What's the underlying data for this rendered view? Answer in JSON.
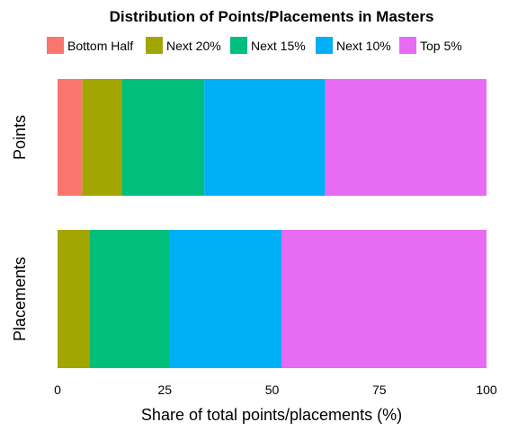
{
  "chart_data": {
    "type": "bar",
    "orientation": "horizontal",
    "stacked": true,
    "title": "Distribution of Points/Placements in Masters",
    "xlabel": "Share of total points/placements (%)",
    "ylabel": "",
    "xlim": [
      0,
      100
    ],
    "xticks": [
      "0",
      "25",
      "50",
      "75",
      "100"
    ],
    "grid": false,
    "legend_position": "top",
    "categories": [
      "Points",
      "Placements"
    ],
    "series": [
      {
        "name": "Bottom Half",
        "color": "#F8766D",
        "values": [
          5.8,
          0
        ]
      },
      {
        "name": "Next 20%",
        "color": "#A3A500",
        "values": [
          9.2,
          7.4
        ]
      },
      {
        "name": "Next 15%",
        "color": "#00BF7D",
        "values": [
          19.2,
          18.6
        ]
      },
      {
        "name": "Next 10%",
        "color": "#00B0F6",
        "values": [
          28.2,
          26.2
        ]
      },
      {
        "name": "Top 5%",
        "color": "#E76BF3",
        "values": [
          37.6,
          47.8
        ]
      }
    ]
  }
}
